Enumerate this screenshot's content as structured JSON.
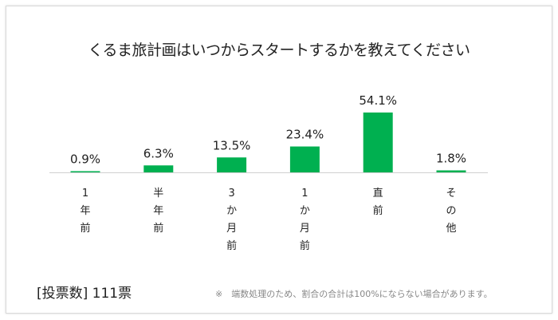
{
  "chart_data": {
    "type": "bar",
    "title": "くるま旅計画はいつからスタートするかを教えてください",
    "categories": [
      "1\n年\n前",
      "半\n年\n前",
      "3\nか\n月\n前",
      "1\nか\n月\n前",
      "直\n前",
      "そ\nの\n他"
    ],
    "values": [
      0.9,
      6.3,
      13.5,
      23.4,
      54.1,
      1.8
    ],
    "data_labels": [
      "0.9%",
      "6.3%",
      "13.5%",
      "23.4%",
      "54.1%",
      "1.8%"
    ],
    "ylim": [
      0,
      60
    ],
    "grid": false,
    "bar_color": "#00b050"
  },
  "footer": {
    "votes": "[投票数] 111票",
    "note": "※　端数処理のため、割合の合計は100%にならない場合があります。"
  }
}
